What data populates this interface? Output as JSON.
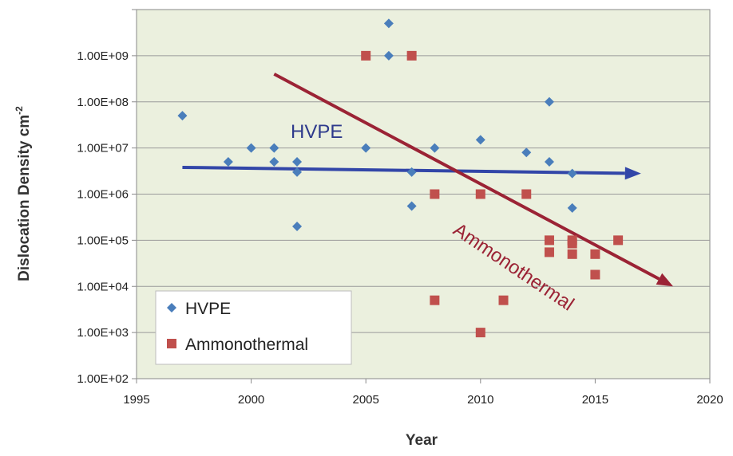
{
  "chart_data": {
    "type": "scatter",
    "title": "",
    "xlabel": "Year",
    "ylabel": "Dislocation Density cm",
    "ylabel_superscript": "-2",
    "xlim": [
      1995,
      2020
    ],
    "ylim": [
      100,
      10000000000
    ],
    "y_scale": "log",
    "grid": "horizontal",
    "plot_background": "#ebf0de",
    "legend_position": "bottom-left",
    "x_ticks": [
      "1995",
      "2000",
      "2005",
      "2010",
      "2015",
      "2020"
    ],
    "y_ticks": [
      "1.00E+02",
      "1.00E+03",
      "1.00E+04",
      "1.00E+05",
      "1.00E+06",
      "1.00E+07",
      "1.00E+08",
      "1.00E+09"
    ],
    "series": [
      {
        "name": "HVPE",
        "marker": "diamond",
        "color": "#4a7ebb",
        "points": [
          [
            1997,
            50000000
          ],
          [
            1999,
            5000000
          ],
          [
            2000,
            10000000
          ],
          [
            2001,
            10000000
          ],
          [
            2001,
            5000000
          ],
          [
            2002,
            5000000
          ],
          [
            2002,
            3000000
          ],
          [
            2002,
            200000
          ],
          [
            2005,
            10000000
          ],
          [
            2006,
            5000000000
          ],
          [
            2006,
            1000000000
          ],
          [
            2007,
            3000000
          ],
          [
            2007,
            550000
          ],
          [
            2008,
            10000000
          ],
          [
            2010,
            15000000
          ],
          [
            2012,
            8000000
          ],
          [
            2013,
            100000000
          ],
          [
            2013,
            5000000
          ],
          [
            2014,
            2800000
          ],
          [
            2014,
            500000
          ]
        ]
      },
      {
        "name": "Ammonothermal",
        "marker": "square",
        "color": "#c0504d",
        "points": [
          [
            2005,
            1000000000
          ],
          [
            2007,
            1000000000
          ],
          [
            2008,
            1000000
          ],
          [
            2008,
            5000
          ],
          [
            2010,
            1000000
          ],
          [
            2010,
            1000
          ],
          [
            2011,
            5000
          ],
          [
            2012,
            1000000
          ],
          [
            2013,
            100000
          ],
          [
            2013,
            55000
          ],
          [
            2014,
            100000
          ],
          [
            2014,
            85000
          ],
          [
            2014,
            50000
          ],
          [
            2015,
            50000
          ],
          [
            2015,
            18000
          ],
          [
            2016,
            100000
          ]
        ]
      }
    ],
    "annotations": [
      {
        "text": "HVPE",
        "color": "#2e3a8c"
      },
      {
        "text": "Ammonothermal",
        "color": "#9b2335"
      }
    ],
    "trend_arrows": [
      {
        "name": "HVPE",
        "color": "#3246a8",
        "from": [
          1997,
          3800000
        ],
        "to": [
          2017,
          2800000
        ]
      },
      {
        "name": "Ammonothermal",
        "color": "#9b2335",
        "from": [
          2001,
          400000000
        ],
        "to": [
          2018.4,
          10000
        ]
      }
    ]
  }
}
